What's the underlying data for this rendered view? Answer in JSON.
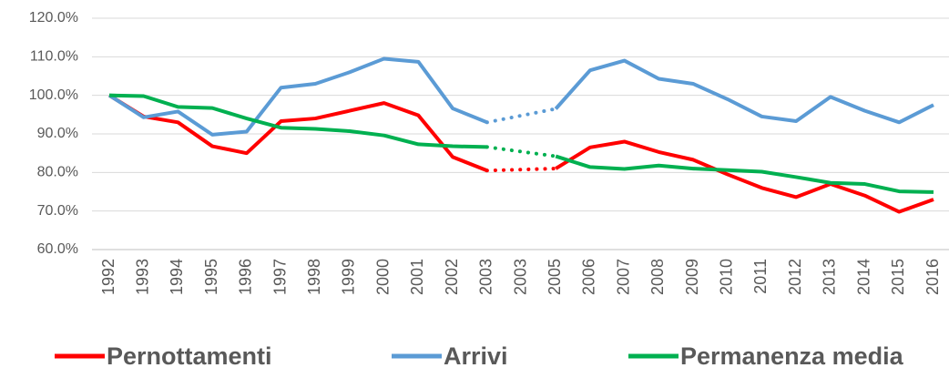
{
  "chart_data": {
    "type": "line",
    "categories": [
      "1992",
      "1993",
      "1994",
      "1995",
      "1996",
      "1997",
      "1998",
      "1999",
      "2000",
      "2001",
      "2002",
      "2003",
      "2003",
      "2005",
      "2006",
      "2007",
      "2008",
      "2009",
      "2010",
      "2011",
      "2012",
      "2013",
      "2014",
      "2015",
      "2016"
    ],
    "series": [
      {
        "name": "Pernottamenti",
        "color": "#ff0000",
        "values": [
          100,
          94.5,
          93,
          86.8,
          85,
          93.3,
          94,
          96,
          98,
          94.8,
          84,
          80.5,
          null,
          81,
          86.5,
          88,
          85.3,
          83.3,
          79.5,
          76,
          73.6,
          77,
          74,
          69.8,
          73
        ]
      },
      {
        "name": "Arrivi",
        "color": "#5b9bd5",
        "values": [
          100,
          94.3,
          95.8,
          89.8,
          90.6,
          102,
          103,
          106,
          109.5,
          108.7,
          96.6,
          93,
          null,
          96.5,
          106.5,
          109,
          104.3,
          103,
          99,
          94.5,
          93.3,
          99.6,
          96,
          93,
          97.5
        ]
      },
      {
        "name": "Permanenza media",
        "color": "#00b050",
        "values": [
          100,
          99.8,
          97,
          96.7,
          94,
          91.6,
          91.3,
          90.7,
          89.6,
          87.3,
          86.8,
          86.6,
          null,
          84.2,
          81.4,
          80.9,
          81.8,
          81,
          80.6,
          80.2,
          78.8,
          77.3,
          77,
          75.1,
          74.9
        ]
      }
    ],
    "ylim": [
      60,
      120
    ],
    "yticks": [
      {
        "value": 60,
        "label": "60.0%"
      },
      {
        "value": 70,
        "label": "70.0%"
      },
      {
        "value": 80,
        "label": "80.0%"
      },
      {
        "value": 90,
        "label": "90.0%"
      },
      {
        "value": 100,
        "label": "100.0%"
      },
      {
        "value": 110,
        "label": "110.0%"
      },
      {
        "value": 120,
        "label": "120.0%"
      }
    ],
    "grid": true,
    "legend": "bottom"
  }
}
